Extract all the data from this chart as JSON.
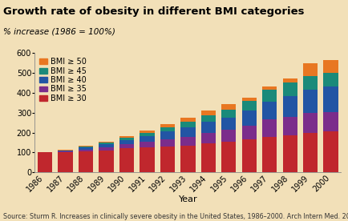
{
  "title": "Growth rate of obesity in different BMI categories",
  "subtitle": "% increase (1986 = 100%)",
  "xlabel": "Year",
  "source": "Source: Sturm R. Increases in clinically severe obesity in the United States, 1986–2000. Arch Intern Med. 2003;163:2146–2149.",
  "years": [
    1986,
    1987,
    1988,
    1989,
    1990,
    1991,
    1992,
    1993,
    1994,
    1995,
    1996,
    1997,
    1998,
    1999,
    2000
  ],
  "categories": [
    "BMI ≥ 30",
    "BMI ≥ 35",
    "BMI ≥ 40",
    "BMI ≥ 45",
    "BMI ≥ 50"
  ],
  "colors": [
    "#c0272d",
    "#7b2d8b",
    "#2255a4",
    "#1a8a7a",
    "#e87722"
  ],
  "data": {
    "BMI ≥ 30": [
      100,
      100,
      105,
      108,
      120,
      125,
      130,
      135,
      148,
      155,
      165,
      180,
      185,
      200,
      205
    ],
    "BMI ≥ 35": [
      0,
      4,
      10,
      17,
      22,
      30,
      38,
      45,
      52,
      58,
      70,
      85,
      95,
      100,
      100
    ],
    "BMI ≥ 40": [
      0,
      4,
      10,
      16,
      20,
      28,
      38,
      45,
      54,
      62,
      75,
      90,
      105,
      115,
      125
    ],
    "BMI ≥ 45": [
      0,
      2,
      5,
      8,
      12,
      16,
      22,
      28,
      34,
      42,
      50,
      60,
      68,
      70,
      70
    ],
    "BMI ≥ 50": [
      0,
      2,
      4,
      6,
      8,
      10,
      14,
      20,
      24,
      28,
      15,
      15,
      20,
      65,
      65
    ]
  },
  "ylim": [
    0,
    600
  ],
  "yticks": [
    0,
    100,
    200,
    300,
    400,
    500,
    600
  ],
  "background_color": "#f2e0b8",
  "title_fontsize": 9.5,
  "subtitle_fontsize": 7.5,
  "tick_fontsize": 7,
  "source_fontsize": 5.8,
  "legend_fontsize": 7
}
